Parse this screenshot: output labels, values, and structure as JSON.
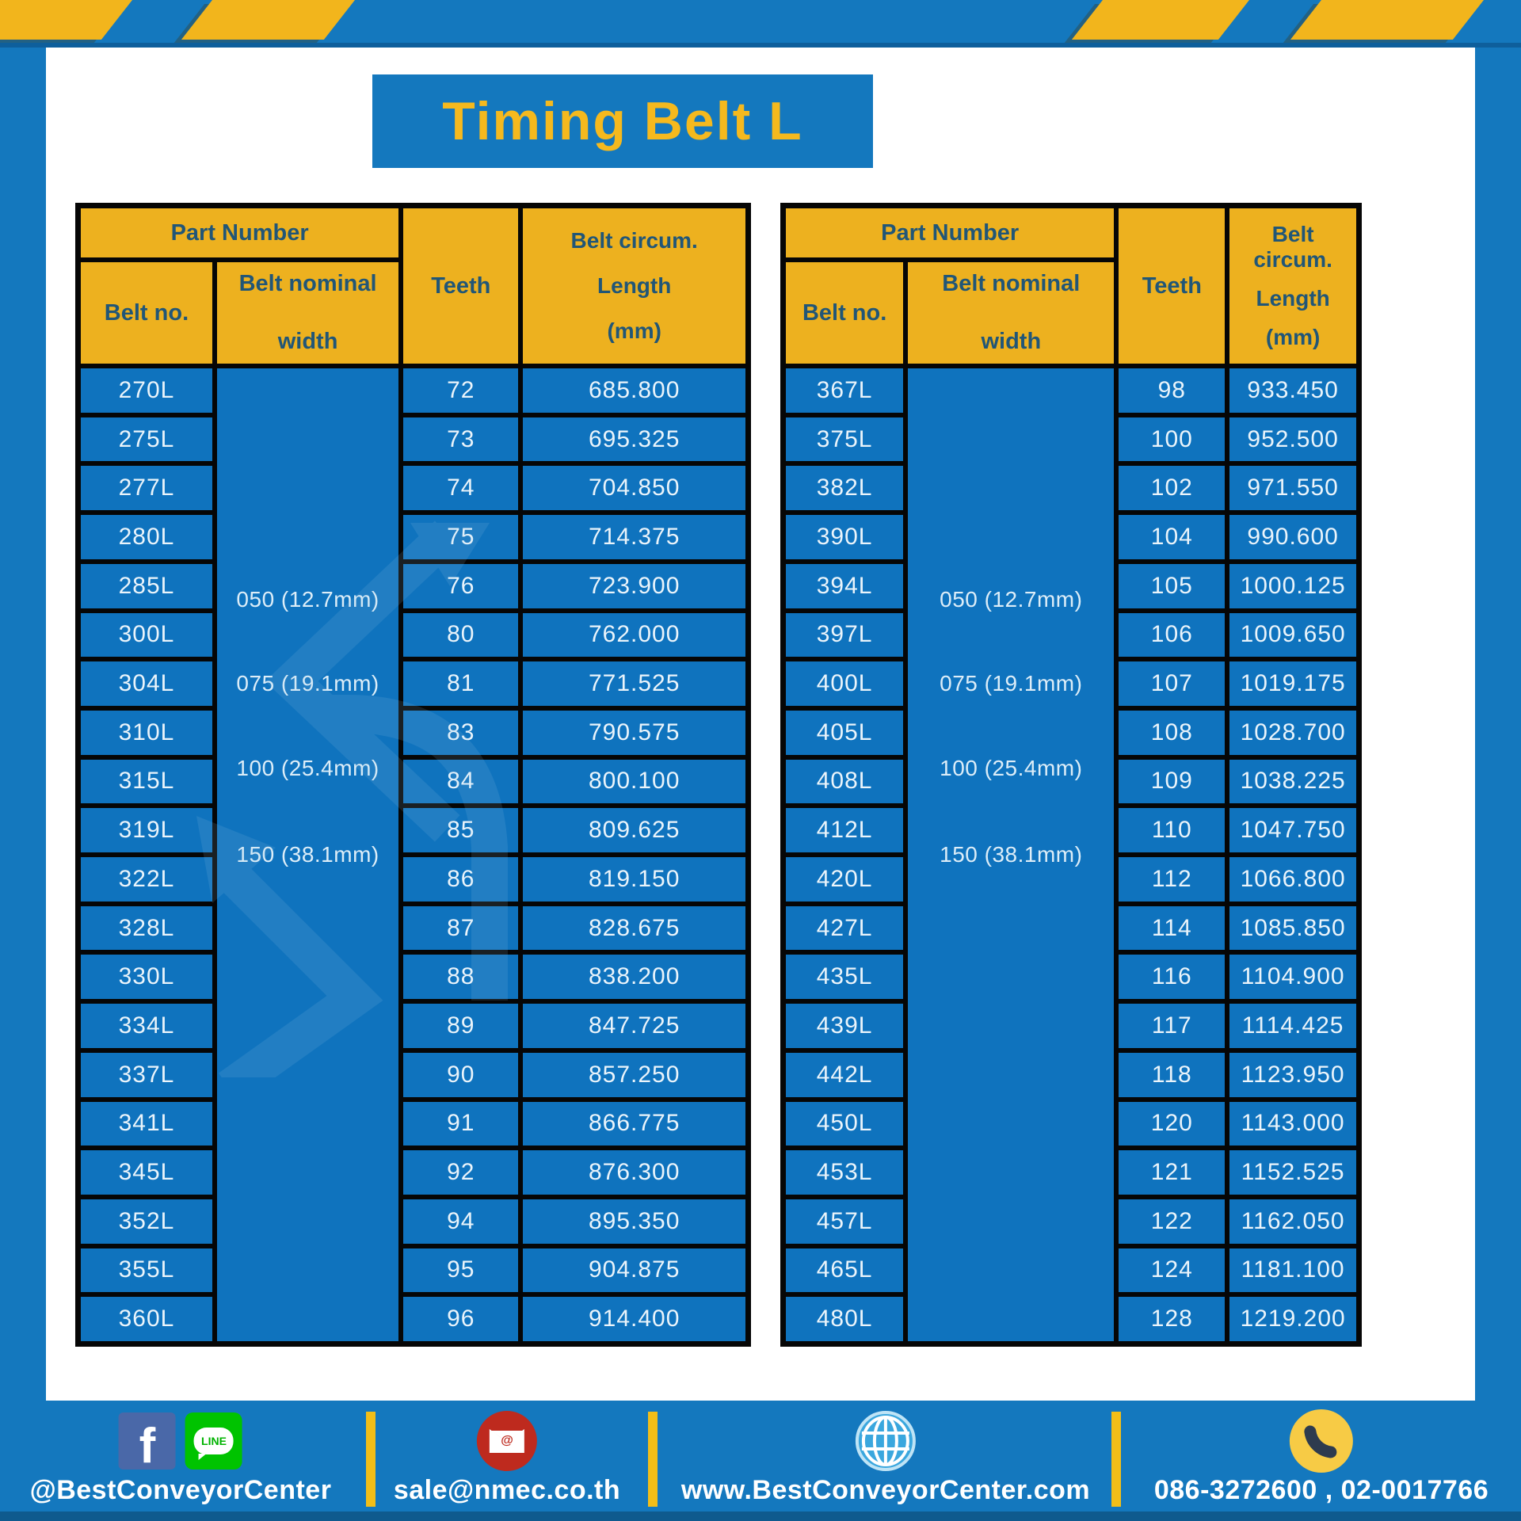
{
  "title": "Timing Belt L",
  "columns": {
    "part_number": "Part Number",
    "belt_no": "Belt no.",
    "belt_nominal_line1": "Belt nominal",
    "belt_nominal_line2": "width",
    "teeth": "Teeth",
    "circ_line1": "Belt circum.",
    "circ_line2": "Length",
    "circ_line3": "(mm)"
  },
  "tables": [
    {
      "widths": [
        "050 (12.7mm)",
        "075 (19.1mm)",
        "100 (25.4mm)",
        "150 (38.1mm)"
      ],
      "rows": [
        [
          "270L",
          "72",
          "685.800"
        ],
        [
          "275L",
          "73",
          "695.325"
        ],
        [
          "277L",
          "74",
          "704.850"
        ],
        [
          "280L",
          "75",
          "714.375"
        ],
        [
          "285L",
          "76",
          "723.900"
        ],
        [
          "300L",
          "80",
          "762.000"
        ],
        [
          "304L",
          "81",
          "771.525"
        ],
        [
          "310L",
          "83",
          "790.575"
        ],
        [
          "315L",
          "84",
          "800.100"
        ],
        [
          "319L",
          "85",
          "809.625"
        ],
        [
          "322L",
          "86",
          "819.150"
        ],
        [
          "328L",
          "87",
          "828.675"
        ],
        [
          "330L",
          "88",
          "838.200"
        ],
        [
          "334L",
          "89",
          "847.725"
        ],
        [
          "337L",
          "90",
          "857.250"
        ],
        [
          "341L",
          "91",
          "866.775"
        ],
        [
          "345L",
          "92",
          "876.300"
        ],
        [
          "352L",
          "94",
          "895.350"
        ],
        [
          "355L",
          "95",
          "904.875"
        ],
        [
          "360L",
          "96",
          "914.400"
        ]
      ]
    },
    {
      "widths": [
        "050 (12.7mm)",
        "075 (19.1mm)",
        "100 (25.4mm)",
        "150 (38.1mm)"
      ],
      "rows": [
        [
          "367L",
          "98",
          "933.450"
        ],
        [
          "375L",
          "100",
          "952.500"
        ],
        [
          "382L",
          "102",
          "971.550"
        ],
        [
          "390L",
          "104",
          "990.600"
        ],
        [
          "394L",
          "105",
          "1000.125"
        ],
        [
          "397L",
          "106",
          "1009.650"
        ],
        [
          "400L",
          "107",
          "1019.175"
        ],
        [
          "405L",
          "108",
          "1028.700"
        ],
        [
          "408L",
          "109",
          "1038.225"
        ],
        [
          "412L",
          "110",
          "1047.750"
        ],
        [
          "420L",
          "112",
          "1066.800"
        ],
        [
          "427L",
          "114",
          "1085.850"
        ],
        [
          "435L",
          "116",
          "1104.900"
        ],
        [
          "439L",
          "117",
          "1114.425"
        ],
        [
          "442L",
          "118",
          "1123.950"
        ],
        [
          "450L",
          "120",
          "1143.000"
        ],
        [
          "453L",
          "121",
          "1152.525"
        ],
        [
          "457L",
          "122",
          "1162.050"
        ],
        [
          "465L",
          "124",
          "1181.100"
        ],
        [
          "480L",
          "128",
          "1219.200"
        ]
      ]
    }
  ],
  "footer": {
    "facebook_letter": "f",
    "line_text": "LINE",
    "social_label": "@BestConveyorCenter",
    "email_at": "@",
    "email_label": "sale@nmec.co.th",
    "website_label": "www.BestConveyorCenter.com",
    "phone_label": "086-3272600 , 02-0017766"
  },
  "colors": {
    "frame_blue": "#1478BE",
    "cell_blue": "#0F73BE",
    "header_yellow": "#EDB11F",
    "stripe_yellow": "#F2B51C",
    "header_text": "#215677",
    "title_yellow": "#F5B91E",
    "line_green": "#00C300",
    "facebook_blue": "#4A68A8",
    "email_red": "#BE2A1E",
    "globe_blue": "#3AA7DE",
    "phone_yellow": "#F7CB45"
  }
}
